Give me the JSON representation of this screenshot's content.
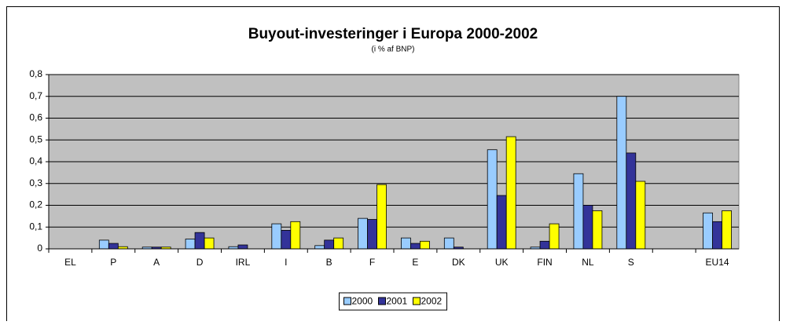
{
  "chart_data": {
    "type": "bar",
    "title": "Buyout-investeringer i Europa 2000-2002",
    "subtitle": "(i % af BNP)",
    "categories": [
      "EL",
      "P",
      "A",
      "D",
      "IRL",
      "I",
      "B",
      "F",
      "E",
      "DK",
      "UK",
      "FIN",
      "NL",
      "S",
      null,
      "EU14"
    ],
    "series": [
      {
        "name": "2000",
        "color": "#99ccff",
        "values": [
          0,
          0.04,
          0.008,
          0.045,
          0.01,
          0.115,
          0.015,
          0.14,
          0.05,
          0.05,
          0.455,
          0.008,
          0.345,
          0.7,
          null,
          0.165
        ]
      },
      {
        "name": "2001",
        "color": "#333399",
        "values": [
          0,
          0.025,
          0.008,
          0.075,
          0.018,
          0.085,
          0.04,
          0.135,
          0.025,
          0.008,
          0.245,
          0.035,
          0.2,
          0.44,
          null,
          0.125
        ]
      },
      {
        "name": "2002",
        "color": "#ffff00",
        "values": [
          0,
          0.01,
          0.008,
          0.05,
          0,
          0.125,
          0.05,
          0.295,
          0.035,
          0,
          0.515,
          0.115,
          0.175,
          0.31,
          null,
          0.175
        ]
      }
    ],
    "ylim": [
      0,
      0.8
    ],
    "yticks": [
      0,
      {
        "value": 0.1,
        "label": "0,1"
      },
      {
        "value": 0.2,
        "label": "0,2"
      },
      {
        "value": 0.3,
        "label": "0,3"
      },
      {
        "value": 0.4,
        "label": "0,4"
      },
      {
        "value": 0.5,
        "label": "0,5"
      },
      {
        "value": 0.6,
        "label": "0,6"
      },
      {
        "value": 0.7,
        "label": "0,7"
      },
      {
        "value": 0.8,
        "label": "0,8"
      }
    ],
    "grid": true,
    "legend": "bottom"
  }
}
